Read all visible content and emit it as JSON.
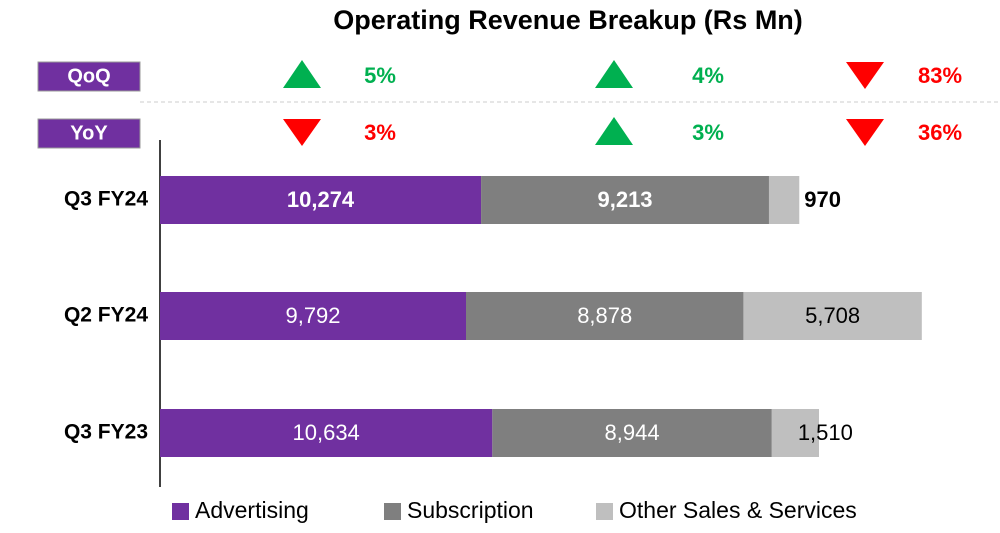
{
  "chart_data": {
    "type": "stacked_hbar",
    "title": "Operating Revenue Breakup (Rs Mn)",
    "categories": [
      "Q3 FY24",
      "Q2 FY24",
      "Q3 FY23"
    ],
    "series": [
      {
        "name": "Advertising",
        "color": "#7030a0",
        "values": [
          10274,
          9792,
          10634
        ],
        "value_labels": [
          "10,274",
          "9,792",
          "10,634"
        ]
      },
      {
        "name": "Subscription",
        "color": "#7f7f7f",
        "values": [
          9213,
          8878,
          8944
        ],
        "value_labels": [
          "9,213",
          "8,878",
          "8,944"
        ]
      },
      {
        "name": "Other Sales & Services",
        "color": "#bfbfbf",
        "values": [
          970,
          5708,
          1510
        ],
        "value_labels": [
          "970",
          "5,708",
          "1,510"
        ]
      }
    ],
    "xlim": [
      0,
      26000
    ],
    "comparisons": [
      {
        "label": "QoQ",
        "changes": [
          {
            "direction": "up",
            "text": "5%"
          },
          {
            "direction": "up",
            "text": "4%"
          },
          {
            "direction": "down",
            "text": "83%"
          }
        ]
      },
      {
        "label": "YoY",
        "changes": [
          {
            "direction": "down",
            "text": "3%"
          },
          {
            "direction": "up",
            "text": "3%"
          },
          {
            "direction": "down",
            "text": "36%"
          }
        ]
      }
    ],
    "up_color": "#00b050",
    "down_color": "#ff0000",
    "label_box_color": "#7030a0"
  }
}
